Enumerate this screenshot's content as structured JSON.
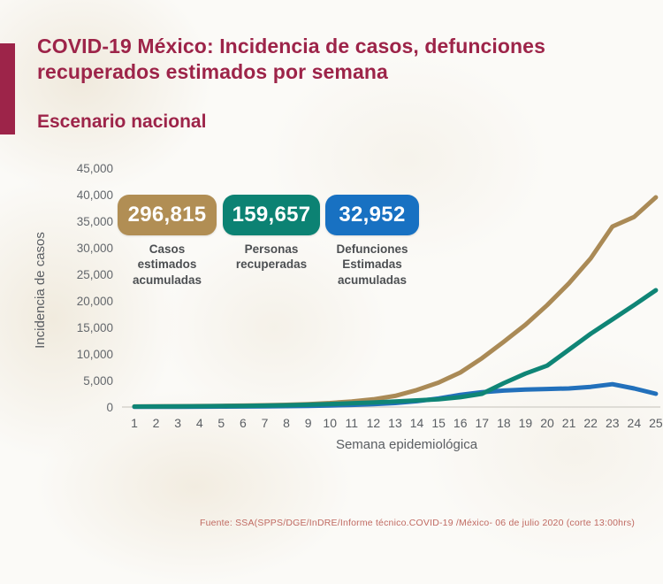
{
  "header": {
    "title": "COVID-19 México: Incidencia de casos, defunciones recuperados estimados por semana",
    "subtitle": "Escenario nacional"
  },
  "stats": [
    {
      "value": "296,815",
      "label": "Casos\nestimados\nacumuladas",
      "color": "#b18e54"
    },
    {
      "value": "159,657",
      "label": "Personas\nrecuperadas",
      "color": "#0c8273"
    },
    {
      "value": "32,952",
      "label": "Defunciones\nEstimadas\nacumuladas",
      "color": "#1871c2"
    }
  ],
  "chart_data": {
    "type": "line",
    "title": "",
    "xlabel": "Semana epidemiológica",
    "ylabel": "Incidencia de casos",
    "categories": [
      1,
      2,
      3,
      4,
      5,
      6,
      7,
      8,
      9,
      10,
      11,
      12,
      13,
      14,
      15,
      16,
      17,
      18,
      19,
      20,
      21,
      22,
      23,
      24,
      25
    ],
    "series": [
      {
        "name": "Casos estimados acumuladas",
        "color": "#aa8a56",
        "values": [
          100,
          120,
          150,
          180,
          220,
          270,
          330,
          420,
          550,
          750,
          1050,
          1450,
          2100,
          3200,
          4600,
          6500,
          9200,
          12300,
          15500,
          19200,
          23300,
          28000,
          34000,
          35800,
          39500
        ]
      },
      {
        "name": "Personas recuperadas",
        "color": "#0f8576",
        "values": [
          80,
          100,
          120,
          150,
          180,
          220,
          270,
          340,
          430,
          560,
          700,
          850,
          1050,
          1250,
          1450,
          1850,
          2500,
          4500,
          6300,
          7800,
          10800,
          13800,
          16500,
          19200,
          22000
        ]
      },
      {
        "name": "Defunciones Estimadas acumuladas",
        "color": "#2270bb",
        "values": [
          30,
          40,
          50,
          60,
          80,
          100,
          130,
          170,
          220,
          300,
          400,
          550,
          750,
          1100,
          1600,
          2300,
          2800,
          3100,
          3300,
          3400,
          3500,
          3800,
          4300,
          3500,
          2500
        ]
      }
    ],
    "ylim": [
      0,
      45000
    ],
    "y_ticks": [
      "0",
      "5,000",
      "10,000",
      "15,000",
      "20,000",
      "25,000",
      "30,000",
      "35,000",
      "40,000",
      "45,000"
    ],
    "grid": false,
    "legend_position": "none",
    "draw_order": [
      2,
      0,
      1
    ]
  },
  "footer": {
    "source": "Fuente: SSA(SPPS/DGE/InDRE/Informe técnico.COVID-19 /México- 06 de julio 2020 (corte 13:00hrs)"
  }
}
